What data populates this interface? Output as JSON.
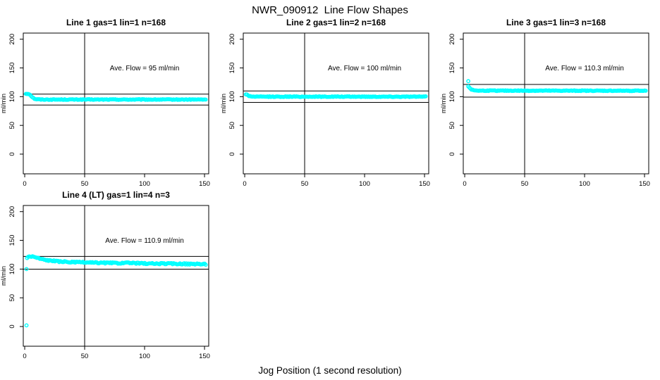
{
  "header": {
    "title": "NWR_090912  Line Flow Shapes"
  },
  "footer": {
    "xlabel": "Jog Position (1 second resolution)"
  },
  "chart_data": {
    "type": "scatter",
    "title": "NWR_090912  Line Flow Shapes",
    "xlabel": "Jog Position (1 second resolution)",
    "ylabel": "ml/min",
    "xticks": [
      0,
      50,
      100,
      150
    ],
    "yticks": [
      0,
      50,
      100,
      150,
      200
    ],
    "xlim": [
      -1.2,
      153.5
    ],
    "ylim": [
      -34.3,
      210.7
    ],
    "grid": false,
    "point_color": "#00FFFF",
    "axis_color": "#000000",
    "marker": "open-circle",
    "note": "horizontal reference lines are ave_flow plus/minus 10 percent; vertical reference line at jog position 50",
    "panels": [
      {
        "title": "Line 1 gas=1 lin=1 n=168",
        "annotation": "Ave. Flow =  95  ml/min",
        "ave_flow": 95,
        "n": 168,
        "hlines": [
          104.5,
          85.5
        ],
        "vline": 50,
        "x_start": 1,
        "x_end": 151,
        "n_points": 168,
        "noise": 0.6,
        "profile": [
          [
            1,
            105
          ],
          [
            3,
            105
          ],
          [
            4,
            104.5
          ],
          [
            5,
            102
          ],
          [
            6,
            100
          ],
          [
            7,
            98
          ],
          [
            8,
            96.5
          ],
          [
            10,
            95.5
          ],
          [
            14,
            95
          ],
          [
            151,
            95
          ]
        ],
        "outliers": []
      },
      {
        "title": "Line 2 gas=1 lin=2 n=168",
        "annotation": "Ave. Flow =  100  ml/min",
        "ave_flow": 100,
        "n": 168,
        "hlines": [
          110,
          90
        ],
        "vline": 50,
        "x_start": 1,
        "x_end": 151,
        "n_points": 168,
        "noise": 0.6,
        "profile": [
          [
            1,
            104
          ],
          [
            2,
            103.5
          ],
          [
            3,
            102
          ],
          [
            4,
            101
          ],
          [
            6,
            100.3
          ],
          [
            10,
            100
          ],
          [
            151,
            100
          ]
        ],
        "outliers": []
      },
      {
        "title": "Line 3 gas=1 lin=3 n=168",
        "annotation": "Ave. Flow =  110.3  ml/min",
        "ave_flow": 110.3,
        "n": 168,
        "hlines": [
          121.3,
          99.3
        ],
        "vline": 50,
        "x_start": 3,
        "x_end": 151,
        "n_points": 168,
        "noise": 0.6,
        "profile": [
          [
            3,
            118
          ],
          [
            4,
            116
          ],
          [
            5,
            113.5
          ],
          [
            6,
            112
          ],
          [
            8,
            111
          ],
          [
            12,
            110.5
          ],
          [
            151,
            110.3
          ]
        ],
        "outliers": [
          [
            3,
            127
          ]
        ]
      },
      {
        "title": "Line 4 (LT) gas=1 lin=4 n=3",
        "annotation": "Ave. Flow =  110.9  ml/min",
        "ave_flow": 110.9,
        "n": 3,
        "hlines": [
          122,
          99.8
        ],
        "vline": 50,
        "x_start": 2,
        "x_end": 151,
        "n_points": 168,
        "noise": 1.1,
        "profile": [
          [
            2,
            119.5
          ],
          [
            3,
            121
          ],
          [
            4,
            122
          ],
          [
            7,
            122
          ],
          [
            9,
            120.5
          ],
          [
            12,
            118.5
          ],
          [
            16,
            116.5
          ],
          [
            22,
            114.5
          ],
          [
            30,
            113
          ],
          [
            40,
            112
          ],
          [
            50,
            111.5
          ],
          [
            60,
            111
          ],
          [
            75,
            110.5
          ],
          [
            90,
            110.5
          ],
          [
            105,
            109.5
          ],
          [
            120,
            109.5
          ],
          [
            135,
            109
          ],
          [
            151,
            108.5
          ]
        ],
        "outliers": [
          [
            1.5,
            2
          ],
          [
            1.5,
            100
          ]
        ]
      }
    ]
  }
}
